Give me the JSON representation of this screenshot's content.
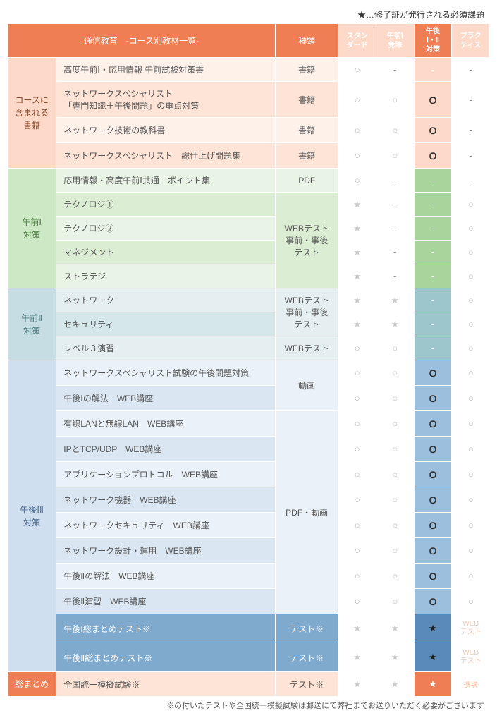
{
  "top_note": "★…修了証が発行される必須課題",
  "header": {
    "main": "通信教育　-コース別教材一覧-",
    "type": "種類",
    "cols": [
      "スタン\nダード",
      "午前Ⅰ\n免除",
      "午後\nⅠ・Ⅱ\n対策",
      "プラク\nティス"
    ]
  },
  "sections": [
    {
      "key": "books",
      "label": "コースに\n含まれる\n書籍",
      "label_cls": "sec-books",
      "rows": [
        {
          "item": "高度午前Ⅰ・応用情報 午前試験対策書",
          "type": "書籍",
          "bg": "bg-books-l",
          "c": [
            "○",
            "-",
            "-",
            "-"
          ],
          "c3cls": "col3-books"
        },
        {
          "item": "ネットワークスペシャリスト\n「専門知識＋午後問題」の重点対策",
          "type": "書籍",
          "bg": "bg-books-d",
          "c": [
            "○",
            "○",
            "●",
            "-"
          ],
          "c3cls": "col3-books"
        },
        {
          "item": "ネットワーク技術の教科書",
          "type": "書籍",
          "bg": "bg-books-l",
          "c": [
            "○",
            "○",
            "●",
            "-"
          ],
          "c3cls": "col3-books"
        },
        {
          "item": "ネットワークスペシャリスト　総仕上げ問題集",
          "type": "書籍",
          "bg": "bg-books-d",
          "c": [
            "○",
            "○",
            "●",
            "-"
          ],
          "c3cls": "col3-books"
        }
      ]
    },
    {
      "key": "am1",
      "label": "午前Ⅰ\n対策",
      "label_cls": "sec-am1",
      "rows": [
        {
          "item": "応用情報・高度午前Ⅰ共通　ポイント集",
          "type": "PDF",
          "bg": "bg-am1-l",
          "c": [
            "○",
            "-",
            "-",
            "-"
          ],
          "c3cls": "col3-am1"
        },
        {
          "item": "テクノロジ①",
          "type_span": 4,
          "type": "WEBテスト\n事前・事後\nテスト",
          "bg": "bg-am1-d",
          "c": [
            "★",
            "-",
            "-",
            "○"
          ],
          "c3cls": "col3-am1"
        },
        {
          "item": "テクノロジ②",
          "bg": "bg-am1-l",
          "c": [
            "★",
            "-",
            "-",
            "○"
          ],
          "c3cls": "col3-am1"
        },
        {
          "item": "マネジメント",
          "bg": "bg-am1-d",
          "c": [
            "★",
            "-",
            "-",
            "○"
          ],
          "c3cls": "col3-am1"
        },
        {
          "item": "ストラテジ",
          "bg": "bg-am1-l",
          "c": [
            "★",
            "-",
            "-",
            "○"
          ],
          "c3cls": "col3-am1"
        }
      ]
    },
    {
      "key": "am2",
      "label": "午前Ⅱ\n対策",
      "label_cls": "sec-am2",
      "rows": [
        {
          "item": "ネットワーク",
          "type_span": 2,
          "type": "WEBテスト\n事前・事後\nテスト",
          "bg": "bg-am2-l",
          "c": [
            "★",
            "★",
            "-",
            "○"
          ],
          "c3cls": "col3-am2"
        },
        {
          "item": "セキュリティ",
          "bg": "bg-am2-d",
          "c": [
            "★",
            "★",
            "-",
            "○"
          ],
          "c3cls": "col3-am2"
        },
        {
          "item": "レベル３演習",
          "type": "WEBテスト",
          "bg": "bg-am2-l",
          "c": [
            "○",
            "○",
            "-",
            "○"
          ],
          "c3cls": "col3-am2"
        }
      ]
    },
    {
      "key": "pm",
      "label": "午後ⅠⅡ\n対策",
      "label_cls": "sec-pm",
      "rows": [
        {
          "item": "ネットワークスペシャリスト試験の午後問題対策",
          "type_span": 2,
          "type": "動画",
          "bg": "bg-pm-l",
          "c": [
            "○",
            "○",
            "●",
            "○"
          ],
          "c3cls": "col3-pm"
        },
        {
          "item": "午後Ⅰの解法　WEB講座",
          "bg": "bg-pm-d",
          "c": [
            "○",
            "○",
            "●",
            "○"
          ],
          "c3cls": "col3-pm"
        },
        {
          "item": "有線LANと無線LAN　WEB講座",
          "type_span": 8,
          "type": "PDF・動画",
          "bg": "bg-pm-l",
          "c": [
            "○",
            "○",
            "●",
            "○"
          ],
          "c3cls": "col3-pm"
        },
        {
          "item": "IPとTCP/UDP　WEB講座",
          "bg": "bg-pm-d",
          "c": [
            "○",
            "○",
            "●",
            "○"
          ],
          "c3cls": "col3-pm"
        },
        {
          "item": "アプリケーションプロトコル　WEB講座",
          "bg": "bg-pm-l",
          "c": [
            "○",
            "○",
            "●",
            "○"
          ],
          "c3cls": "col3-pm"
        },
        {
          "item": "ネットワーク機器　WEB講座",
          "bg": "bg-pm-d",
          "c": [
            "○",
            "○",
            "●",
            "○"
          ],
          "c3cls": "col3-pm"
        },
        {
          "item": "ネットワークセキュリティ　WEB講座",
          "bg": "bg-pm-l",
          "c": [
            "○",
            "○",
            "●",
            "○"
          ],
          "c3cls": "col3-pm"
        },
        {
          "item": "ネットワーク設計・運用　WEB講座",
          "bg": "bg-pm-d",
          "c": [
            "○",
            "○",
            "●",
            "○"
          ],
          "c3cls": "col3-pm"
        },
        {
          "item": "午後Ⅱの解法　WEB講座",
          "bg": "bg-pm-l",
          "c": [
            "○",
            "○",
            "●",
            "○"
          ],
          "c3cls": "col3-pm"
        },
        {
          "item": "午後Ⅱ演習　WEB講座",
          "bg": "bg-pm-d",
          "c": [
            "○",
            "○",
            "●",
            "○"
          ],
          "c3cls": "col3-pm"
        },
        {
          "item": "午後Ⅰ総まとめテスト※",
          "type": "テスト※",
          "bg": "bg-pm-s",
          "white": true,
          "c": [
            "★",
            "★",
            "★B",
            "WEB\nテスト"
          ],
          "c3cls": "col3-pm-s"
        },
        {
          "item": "午後Ⅱ総まとめテスト※",
          "type": "テスト※",
          "bg": "bg-pm-s",
          "white": true,
          "c": [
            "★",
            "★",
            "★B",
            "WEB\nテスト"
          ],
          "c3cls": "col3-pm-s"
        }
      ]
    },
    {
      "key": "sum",
      "label": "総まとめ",
      "label_cls": "sec-sum",
      "rows": [
        {
          "item": "全国統一模擬試験※",
          "type": "テスト※",
          "bg": "bg-sum-l",
          "c": [
            "★",
            "★",
            "★B",
            "選択"
          ],
          "c3cls": "col3-sum"
        }
      ]
    }
  ],
  "bottom_note": "※の付いたテストや全国統一模擬試験は郵送にて弊社までお送りいただく必要がございます"
}
